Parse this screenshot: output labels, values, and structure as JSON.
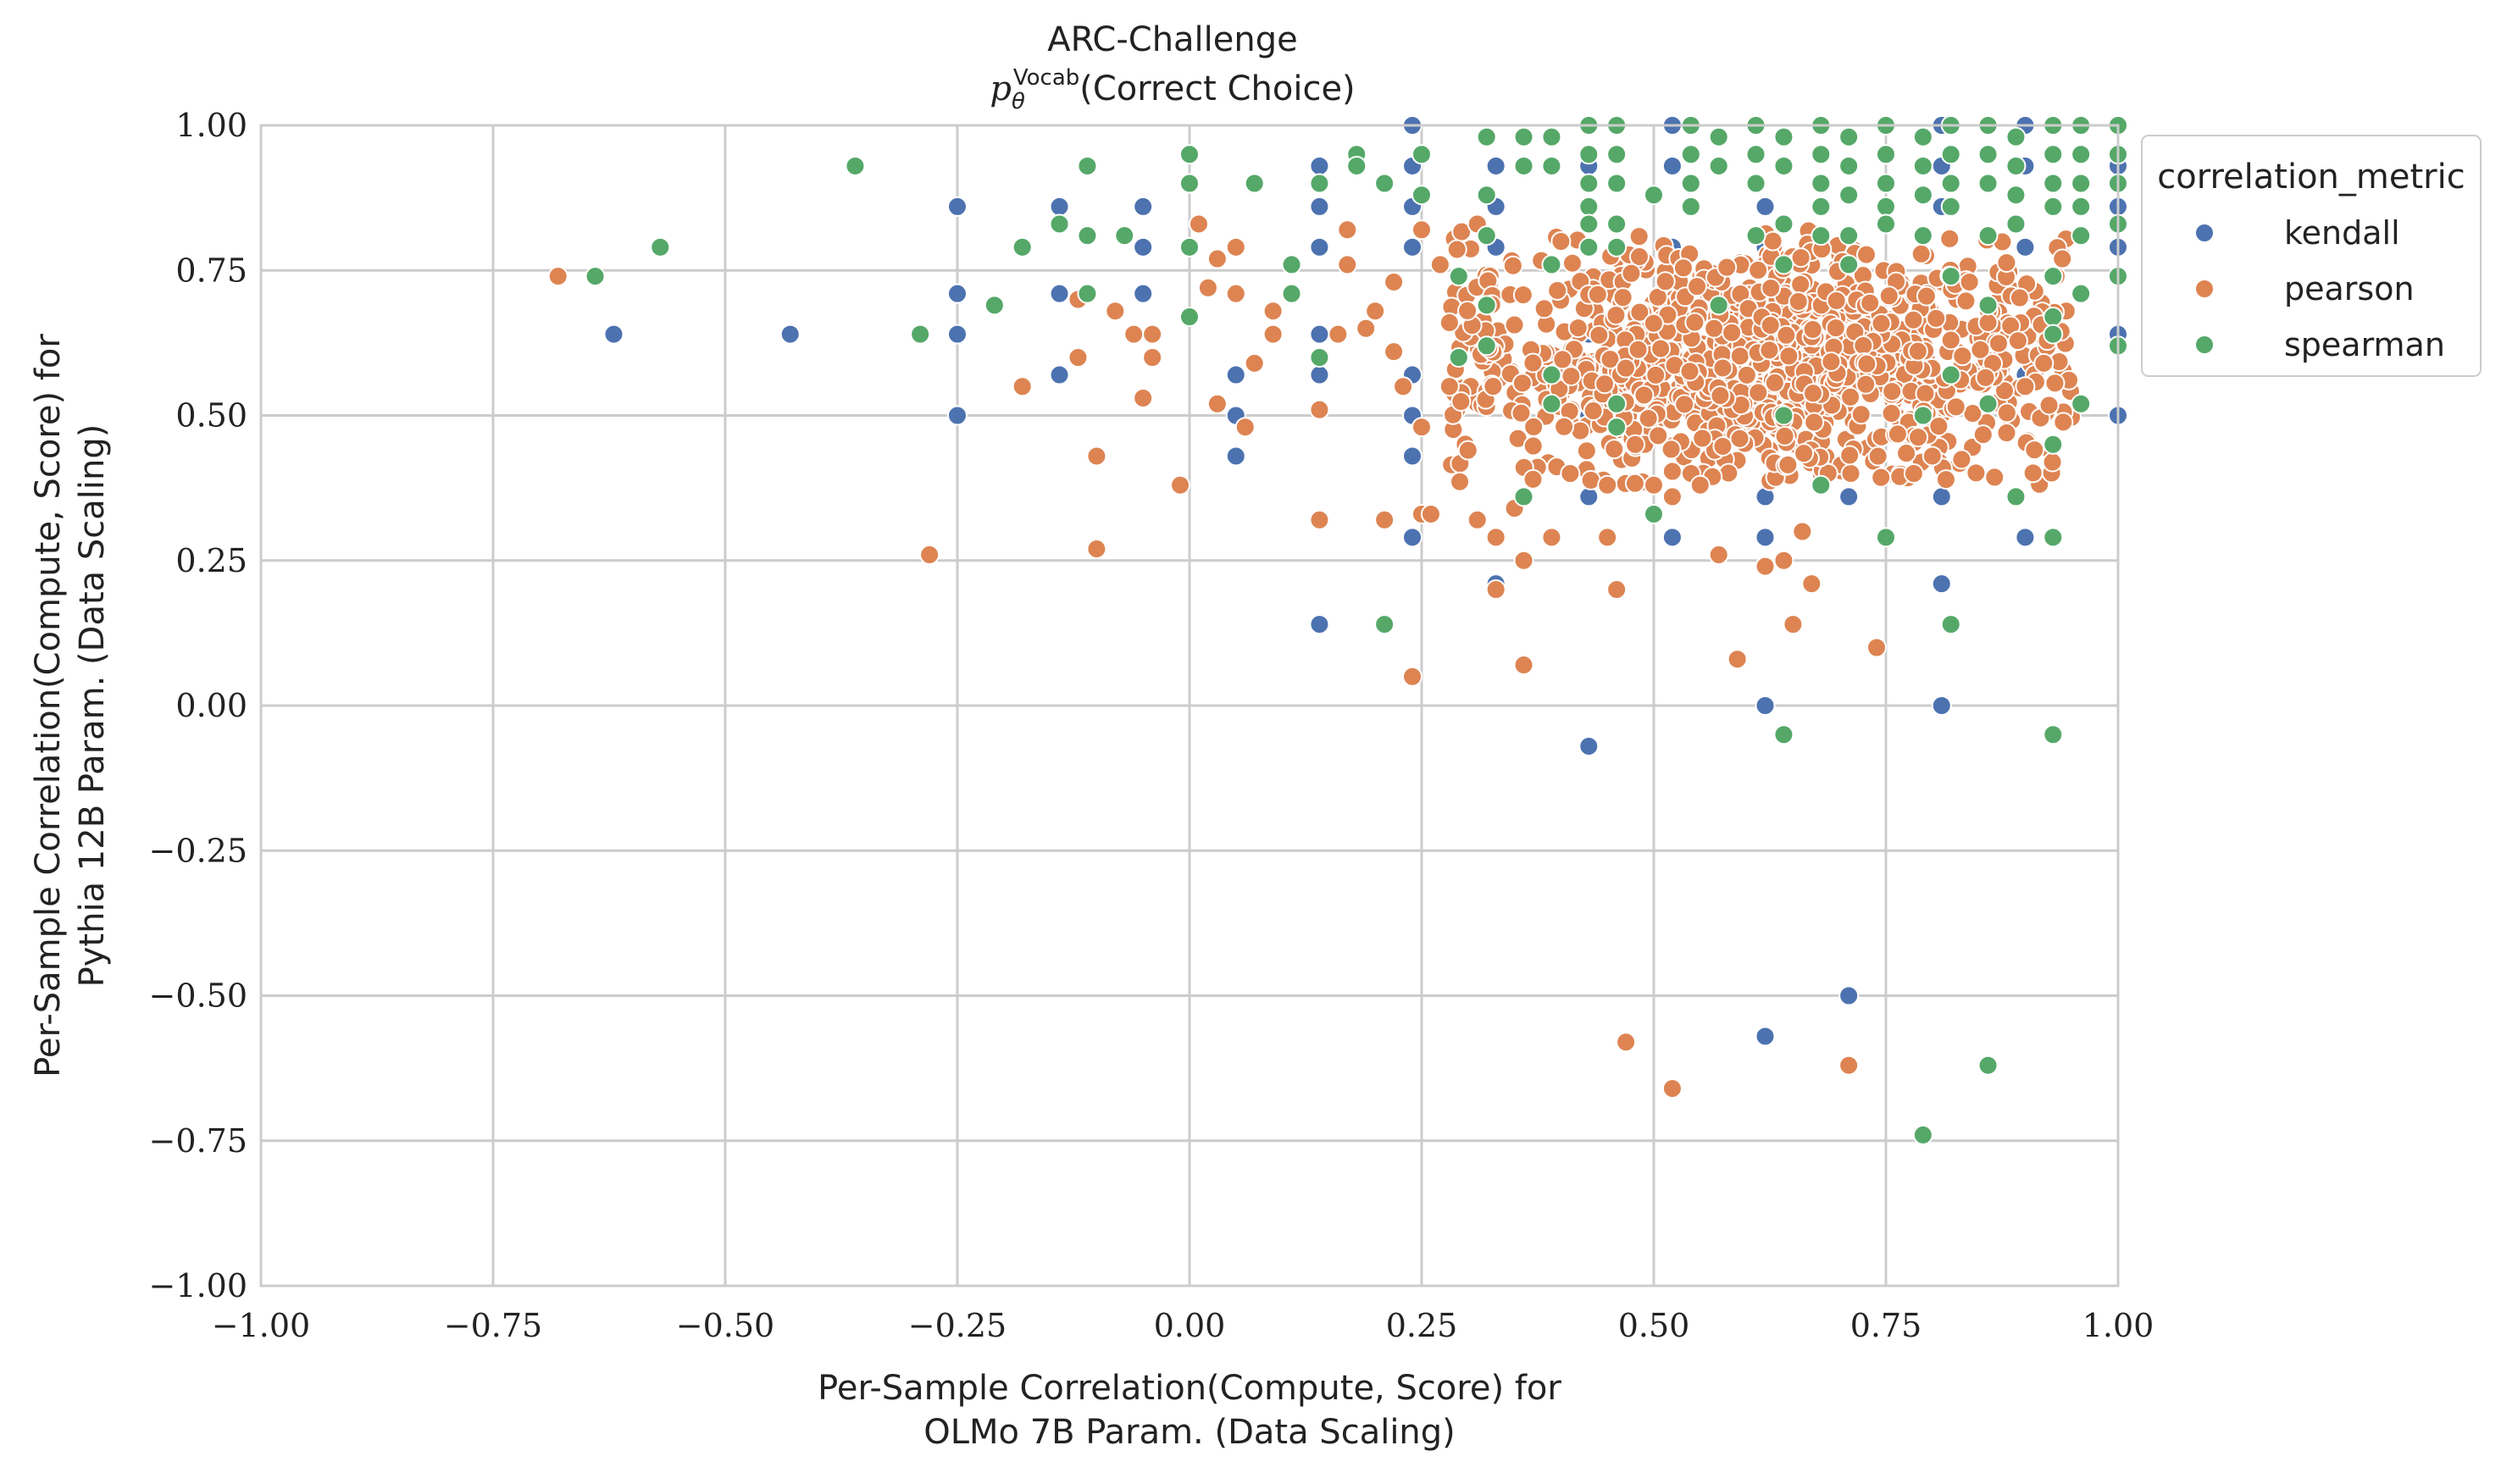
{
  "chart_data": {
    "type": "scatter",
    "title": "ARC-Challenge",
    "subtitle": {
      "var": "p",
      "sub": "θ",
      "sup": "Vocab",
      "rest": "(Correct Choice)"
    },
    "xlabel": [
      "Per-Sample Correlation(Compute, Score) for",
      "OLMo 7B Param. (Data Scaling)"
    ],
    "ylabel": [
      "Per-Sample Correlation(Compute, Score) for",
      "Pythia 12B Param. (Data Scaling)"
    ],
    "xlim": [
      -1.0,
      1.0
    ],
    "ylim": [
      -1.0,
      1.0
    ],
    "x_ticks": [
      -1.0,
      -0.75,
      -0.5,
      -0.25,
      0.0,
      0.25,
      0.5,
      0.75,
      1.0
    ],
    "y_ticks": [
      -1.0,
      -0.75,
      -0.5,
      -0.25,
      0.0,
      0.25,
      0.5,
      0.75,
      1.0
    ],
    "x_tick_labels": [
      "−1.00",
      "−0.75",
      "−0.50",
      "−0.25",
      "0.00",
      "0.25",
      "0.50",
      "0.75",
      "1.00"
    ],
    "y_tick_labels": [
      "−1.00",
      "−0.75",
      "−0.50",
      "−0.25",
      "0.00",
      "0.25",
      "0.50",
      "0.75",
      "1.00"
    ],
    "grid": true,
    "legend": {
      "title": "correlation_metric",
      "placement": "outside-top-right"
    },
    "series": [
      {
        "name": "kendall",
        "color": "#4c72b0",
        "points": [
          [
            -0.62,
            0.64
          ],
          [
            -0.43,
            0.64
          ],
          [
            -0.25,
            0.86
          ],
          [
            -0.25,
            0.71
          ],
          [
            -0.25,
            0.64
          ],
          [
            -0.25,
            0.5
          ],
          [
            -0.14,
            0.86
          ],
          [
            -0.14,
            0.71
          ],
          [
            -0.14,
            0.57
          ],
          [
            -0.05,
            0.86
          ],
          [
            -0.05,
            0.79
          ],
          [
            -0.05,
            0.71
          ],
          [
            0.05,
            0.57
          ],
          [
            0.05,
            0.5
          ],
          [
            0.05,
            0.43
          ],
          [
            0.14,
            0.93
          ],
          [
            0.14,
            0.86
          ],
          [
            0.14,
            0.79
          ],
          [
            0.14,
            0.64
          ],
          [
            0.14,
            0.57
          ],
          [
            0.14,
            0.14
          ],
          [
            0.24,
            1.0
          ],
          [
            0.24,
            0.93
          ],
          [
            0.24,
            0.86
          ],
          [
            0.24,
            0.79
          ],
          [
            0.24,
            0.57
          ],
          [
            0.24,
            0.5
          ],
          [
            0.24,
            0.43
          ],
          [
            0.24,
            0.29
          ],
          [
            0.33,
            0.93
          ],
          [
            0.33,
            0.86
          ],
          [
            0.33,
            0.79
          ],
          [
            0.33,
            0.21
          ],
          [
            0.43,
            0.93
          ],
          [
            0.43,
            0.86
          ],
          [
            0.43,
            0.64
          ],
          [
            0.43,
            0.5
          ],
          [
            0.43,
            0.36
          ],
          [
            0.43,
            -0.07
          ],
          [
            0.52,
            1.0
          ],
          [
            0.52,
            0.93
          ],
          [
            0.52,
            0.79
          ],
          [
            0.52,
            0.29
          ],
          [
            0.62,
            0.86
          ],
          [
            0.62,
            0.79
          ],
          [
            0.62,
            0.36
          ],
          [
            0.62,
            0.29
          ],
          [
            0.62,
            0.0
          ],
          [
            0.62,
            -0.57
          ],
          [
            0.71,
            0.93
          ],
          [
            0.71,
            0.36
          ],
          [
            0.71,
            -0.5
          ],
          [
            0.81,
            1.0
          ],
          [
            0.81,
            0.93
          ],
          [
            0.81,
            0.86
          ],
          [
            0.81,
            0.36
          ],
          [
            0.81,
            0.21
          ],
          [
            0.81,
            0.0
          ],
          [
            0.9,
            1.0
          ],
          [
            0.9,
            0.93
          ],
          [
            0.9,
            0.79
          ],
          [
            0.9,
            0.71
          ],
          [
            0.9,
            0.64
          ],
          [
            0.9,
            0.57
          ],
          [
            0.9,
            0.29
          ],
          [
            1.0,
            1.0
          ],
          [
            1.0,
            0.93
          ],
          [
            1.0,
            0.86
          ],
          [
            1.0,
            0.79
          ],
          [
            1.0,
            0.64
          ],
          [
            1.0,
            0.5
          ]
        ]
      },
      {
        "name": "pearson",
        "color": "#dd8452",
        "points": [
          [
            -0.68,
            0.74
          ],
          [
            -0.28,
            0.26
          ],
          [
            -0.18,
            0.55
          ],
          [
            -0.12,
            0.6
          ],
          [
            -0.12,
            0.7
          ],
          [
            -0.1,
            0.43
          ],
          [
            -0.1,
            0.27
          ],
          [
            -0.08,
            0.68
          ],
          [
            -0.06,
            0.64
          ],
          [
            -0.05,
            0.53
          ],
          [
            -0.04,
            0.6
          ],
          [
            -0.04,
            0.64
          ],
          [
            -0.01,
            0.38
          ],
          [
            0.01,
            0.83
          ],
          [
            0.02,
            0.72
          ],
          [
            0.03,
            0.77
          ],
          [
            0.03,
            0.52
          ],
          [
            0.05,
            0.79
          ],
          [
            0.05,
            0.71
          ],
          [
            0.06,
            0.48
          ],
          [
            0.07,
            0.59
          ],
          [
            0.09,
            0.64
          ],
          [
            0.09,
            0.68
          ],
          [
            0.14,
            0.32
          ],
          [
            0.14,
            0.51
          ],
          [
            0.16,
            0.64
          ],
          [
            0.17,
            0.82
          ],
          [
            0.17,
            0.76
          ],
          [
            0.19,
            0.65
          ],
          [
            0.2,
            0.68
          ],
          [
            0.21,
            0.32
          ],
          [
            0.22,
            0.73
          ],
          [
            0.22,
            0.61
          ],
          [
            0.23,
            0.55
          ],
          [
            0.24,
            0.05
          ],
          [
            0.25,
            0.33
          ],
          [
            0.25,
            0.48
          ],
          [
            0.25,
            0.82
          ],
          [
            0.26,
            0.33
          ],
          [
            0.27,
            0.76
          ],
          [
            0.28,
            0.66
          ],
          [
            0.28,
            0.55
          ],
          [
            0.3,
            0.44
          ],
          [
            0.31,
            0.83
          ],
          [
            0.31,
            0.32
          ],
          [
            0.33,
            0.2
          ],
          [
            0.33,
            0.29
          ],
          [
            0.35,
            0.34
          ],
          [
            0.36,
            0.07
          ],
          [
            0.36,
            0.25
          ],
          [
            0.37,
            0.39
          ],
          [
            0.39,
            0.29
          ],
          [
            0.4,
            0.8
          ],
          [
            0.41,
            0.4
          ],
          [
            0.45,
            0.29
          ],
          [
            0.45,
            0.38
          ],
          [
            0.46,
            0.2
          ],
          [
            0.47,
            -0.58
          ],
          [
            0.48,
            0.45
          ],
          [
            0.5,
            0.38
          ],
          [
            0.52,
            -0.66
          ],
          [
            0.52,
            0.36
          ],
          [
            0.55,
            0.38
          ],
          [
            0.57,
            0.26
          ],
          [
            0.59,
            0.08
          ],
          [
            0.62,
            0.24
          ],
          [
            0.64,
            0.25
          ],
          [
            0.65,
            0.14
          ],
          [
            0.66,
            0.3
          ],
          [
            0.67,
            0.21
          ],
          [
            0.71,
            -0.62
          ],
          [
            0.74,
            0.1
          ],
          [
            0.78,
            0.4
          ],
          [
            0.8,
            0.43
          ],
          [
            0.82,
            0.63
          ],
          [
            0.84,
            0.73
          ],
          [
            0.86,
            0.66
          ],
          [
            0.88,
            0.47
          ],
          [
            0.9,
            0.55
          ],
          [
            0.92,
            0.59
          ],
          [
            0.94,
            0.77
          ]
        ]
      },
      {
        "name": "spearman",
        "color": "#55a868",
        "points": [
          [
            -0.64,
            0.74
          ],
          [
            -0.57,
            0.79
          ],
          [
            -0.36,
            0.93
          ],
          [
            -0.29,
            0.64
          ],
          [
            -0.21,
            0.69
          ],
          [
            -0.18,
            0.79
          ],
          [
            -0.14,
            0.83
          ],
          [
            -0.11,
            0.93
          ],
          [
            -0.11,
            0.81
          ],
          [
            -0.11,
            0.71
          ],
          [
            -0.07,
            0.81
          ],
          [
            0.0,
            0.95
          ],
          [
            0.0,
            0.9
          ],
          [
            0.0,
            0.79
          ],
          [
            0.0,
            0.67
          ],
          [
            0.07,
            0.9
          ],
          [
            0.11,
            0.76
          ],
          [
            0.11,
            0.71
          ],
          [
            0.14,
            0.9
          ],
          [
            0.14,
            0.6
          ],
          [
            0.18,
            0.95
          ],
          [
            0.18,
            0.93
          ],
          [
            0.21,
            0.9
          ],
          [
            0.21,
            0.14
          ],
          [
            0.25,
            0.95
          ],
          [
            0.25,
            0.88
          ],
          [
            0.29,
            0.74
          ],
          [
            0.29,
            0.6
          ],
          [
            0.32,
            0.98
          ],
          [
            0.32,
            0.88
          ],
          [
            0.32,
            0.81
          ],
          [
            0.32,
            0.69
          ],
          [
            0.32,
            0.62
          ],
          [
            0.36,
            0.98
          ],
          [
            0.36,
            0.93
          ],
          [
            0.36,
            0.36
          ],
          [
            0.39,
            0.98
          ],
          [
            0.39,
            0.93
          ],
          [
            0.39,
            0.76
          ],
          [
            0.39,
            0.57
          ],
          [
            0.39,
            0.52
          ],
          [
            0.43,
            1.0
          ],
          [
            0.43,
            0.95
          ],
          [
            0.43,
            0.9
          ],
          [
            0.43,
            0.86
          ],
          [
            0.43,
            0.83
          ],
          [
            0.43,
            0.79
          ],
          [
            0.46,
            1.0
          ],
          [
            0.46,
            0.95
          ],
          [
            0.46,
            0.9
          ],
          [
            0.46,
            0.83
          ],
          [
            0.46,
            0.79
          ],
          [
            0.46,
            0.52
          ],
          [
            0.46,
            0.48
          ],
          [
            0.5,
            0.88
          ],
          [
            0.5,
            0.33
          ],
          [
            0.54,
            1.0
          ],
          [
            0.54,
            0.95
          ],
          [
            0.54,
            0.9
          ],
          [
            0.54,
            0.86
          ],
          [
            0.57,
            0.98
          ],
          [
            0.57,
            0.93
          ],
          [
            0.57,
            0.69
          ],
          [
            0.61,
            1.0
          ],
          [
            0.61,
            0.95
          ],
          [
            0.61,
            0.9
          ],
          [
            0.61,
            0.81
          ],
          [
            0.64,
            0.98
          ],
          [
            0.64,
            0.93
          ],
          [
            0.64,
            0.83
          ],
          [
            0.64,
            0.76
          ],
          [
            0.64,
            0.5
          ],
          [
            0.64,
            -0.05
          ],
          [
            0.68,
            1.0
          ],
          [
            0.68,
            0.95
          ],
          [
            0.68,
            0.9
          ],
          [
            0.68,
            0.86
          ],
          [
            0.68,
            0.81
          ],
          [
            0.68,
            0.38
          ],
          [
            0.71,
            0.98
          ],
          [
            0.71,
            0.93
          ],
          [
            0.71,
            0.88
          ],
          [
            0.71,
            0.81
          ],
          [
            0.71,
            0.76
          ],
          [
            0.75,
            1.0
          ],
          [
            0.75,
            0.95
          ],
          [
            0.75,
            0.9
          ],
          [
            0.75,
            0.86
          ],
          [
            0.75,
            0.83
          ],
          [
            0.75,
            0.29
          ],
          [
            0.79,
            0.98
          ],
          [
            0.79,
            0.93
          ],
          [
            0.79,
            0.88
          ],
          [
            0.79,
            0.81
          ],
          [
            0.79,
            0.5
          ],
          [
            0.79,
            -0.74
          ],
          [
            0.82,
            1.0
          ],
          [
            0.82,
            0.95
          ],
          [
            0.82,
            0.9
          ],
          [
            0.82,
            0.86
          ],
          [
            0.82,
            0.74
          ],
          [
            0.82,
            0.57
          ],
          [
            0.82,
            0.14
          ],
          [
            0.86,
            1.0
          ],
          [
            0.86,
            0.95
          ],
          [
            0.86,
            0.9
          ],
          [
            0.86,
            0.81
          ],
          [
            0.86,
            0.69
          ],
          [
            0.86,
            0.52
          ],
          [
            0.86,
            -0.62
          ],
          [
            0.89,
            0.98
          ],
          [
            0.89,
            0.93
          ],
          [
            0.89,
            0.88
          ],
          [
            0.89,
            0.83
          ],
          [
            0.89,
            0.36
          ],
          [
            0.93,
            1.0
          ],
          [
            0.93,
            0.95
          ],
          [
            0.93,
            0.9
          ],
          [
            0.93,
            0.86
          ],
          [
            0.93,
            0.74
          ],
          [
            0.93,
            0.67
          ],
          [
            0.93,
            0.64
          ],
          [
            0.93,
            0.45
          ],
          [
            0.93,
            0.29
          ],
          [
            0.93,
            -0.05
          ],
          [
            0.96,
            1.0
          ],
          [
            0.96,
            0.95
          ],
          [
            0.96,
            0.9
          ],
          [
            0.96,
            0.86
          ],
          [
            0.96,
            0.81
          ],
          [
            0.96,
            0.71
          ],
          [
            0.96,
            0.52
          ],
          [
            1.0,
            1.0
          ],
          [
            1.0,
            0.95
          ],
          [
            1.0,
            0.9
          ],
          [
            1.0,
            0.83
          ],
          [
            1.0,
            0.74
          ],
          [
            1.0,
            0.62
          ]
        ]
      }
    ],
    "dense_cluster": {
      "series": "pearson",
      "center": [
        0.62,
        0.6
      ],
      "spread": [
        0.17,
        0.1
      ],
      "count": 1100
    }
  }
}
